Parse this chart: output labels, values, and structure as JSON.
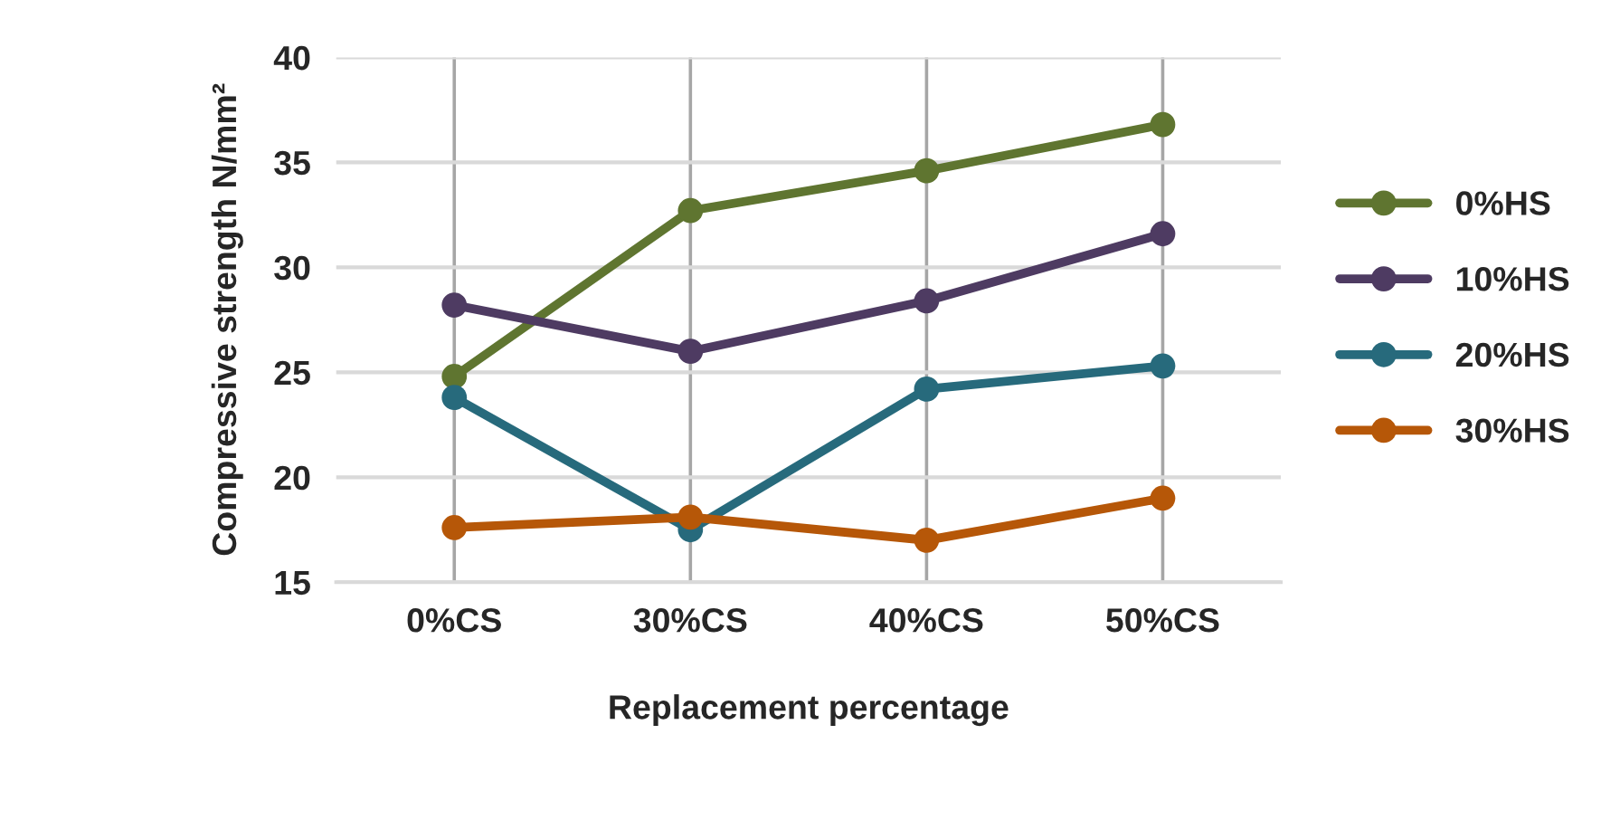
{
  "chart_data": {
    "type": "line",
    "xlabel": "Replacement percentage",
    "ylabel": "Compressive strength N/mm²",
    "categories": [
      "0%CS",
      "30%CS",
      "40%CS",
      "50%CS"
    ],
    "series": [
      {
        "name": "0%HS",
        "color": "#5f7530",
        "values": [
          24.8,
          32.7,
          34.6,
          36.8
        ]
      },
      {
        "name": "10%HS",
        "color": "#4e3b62",
        "values": [
          28.2,
          26.0,
          28.4,
          31.6
        ]
      },
      {
        "name": "20%HS",
        "color": "#276a7c",
        "values": [
          23.8,
          17.5,
          24.2,
          25.3
        ]
      },
      {
        "name": "30%HS",
        "color": "#b65708",
        "values": [
          17.6,
          18.1,
          17.0,
          19.0
        ]
      }
    ],
    "ylim": [
      15,
      40
    ],
    "yticks": [
      15,
      20,
      25,
      30,
      35,
      40
    ],
    "grid": true,
    "legend": "right",
    "marker": "circle",
    "line_style": "solid"
  }
}
